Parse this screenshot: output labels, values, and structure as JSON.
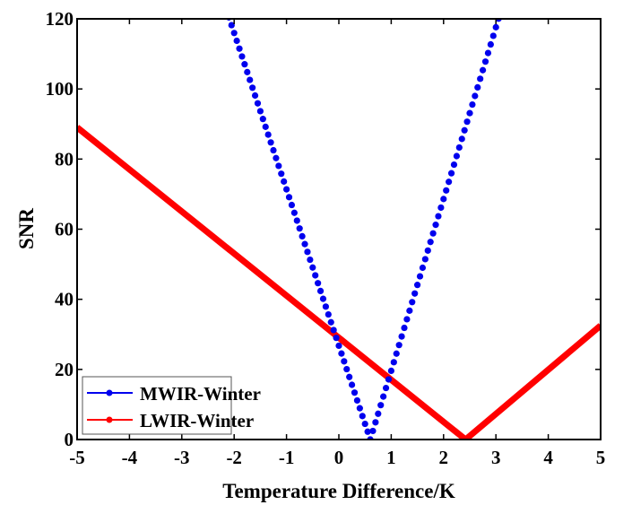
{
  "chart_data": {
    "type": "line",
    "title": "",
    "xlabel": "Temperature Difference/K",
    "ylabel": "SNR",
    "xlim": [
      -5,
      5
    ],
    "ylim": [
      0,
      120
    ],
    "xticks": [
      -5,
      -4,
      -3,
      -2,
      -1,
      0,
      1,
      2,
      3,
      4,
      5
    ],
    "yticks": [
      0,
      20,
      40,
      60,
      80,
      100,
      120
    ],
    "xtick_labels": [
      "-5",
      "-4",
      "-3",
      "-2",
      "-1",
      "0",
      "1",
      "2",
      "3",
      "4",
      "5"
    ],
    "ytick_labels": [
      "0",
      "20",
      "40",
      "60",
      "80",
      "100",
      "120"
    ],
    "grid": false,
    "legend_position": "bottom-left",
    "series": [
      {
        "name": "MWIR-Winter",
        "color": "#0000ee",
        "style": "dotted-markers",
        "model": "v-shape",
        "vertex_x": 0.6,
        "left_slope": 44.6,
        "right_slope": 49.0,
        "x_step": 0.05,
        "sample_points": [
          {
            "x": -2.09,
            "y": 120
          },
          {
            "x": -1,
            "y": 71.4
          },
          {
            "x": 0,
            "y": 26.8
          },
          {
            "x": 0.6,
            "y": 0
          },
          {
            "x": 1,
            "y": 19.6
          },
          {
            "x": 2,
            "y": 68.6
          },
          {
            "x": 3.05,
            "y": 120
          }
        ]
      },
      {
        "name": "LWIR-Winter",
        "color": "#ff0000",
        "style": "thick-line",
        "model": "v-shape",
        "vertex_x": 2.42,
        "left_slope": 12.0,
        "right_slope": 12.6,
        "sample_points": [
          {
            "x": -5,
            "y": 89
          },
          {
            "x": -4,
            "y": 77
          },
          {
            "x": -3,
            "y": 65
          },
          {
            "x": -2,
            "y": 53
          },
          {
            "x": -1,
            "y": 41
          },
          {
            "x": 0,
            "y": 29
          },
          {
            "x": 1,
            "y": 17
          },
          {
            "x": 2,
            "y": 5
          },
          {
            "x": 2.42,
            "y": 0
          },
          {
            "x": 3,
            "y": 7.3
          },
          {
            "x": 4,
            "y": 19.9
          },
          {
            "x": 5,
            "y": 32.5
          }
        ]
      }
    ],
    "legend": [
      {
        "label": "MWIR-Winter",
        "color": "#0000ee"
      },
      {
        "label": "LWIR-Winter",
        "color": "#ff0000"
      }
    ]
  }
}
